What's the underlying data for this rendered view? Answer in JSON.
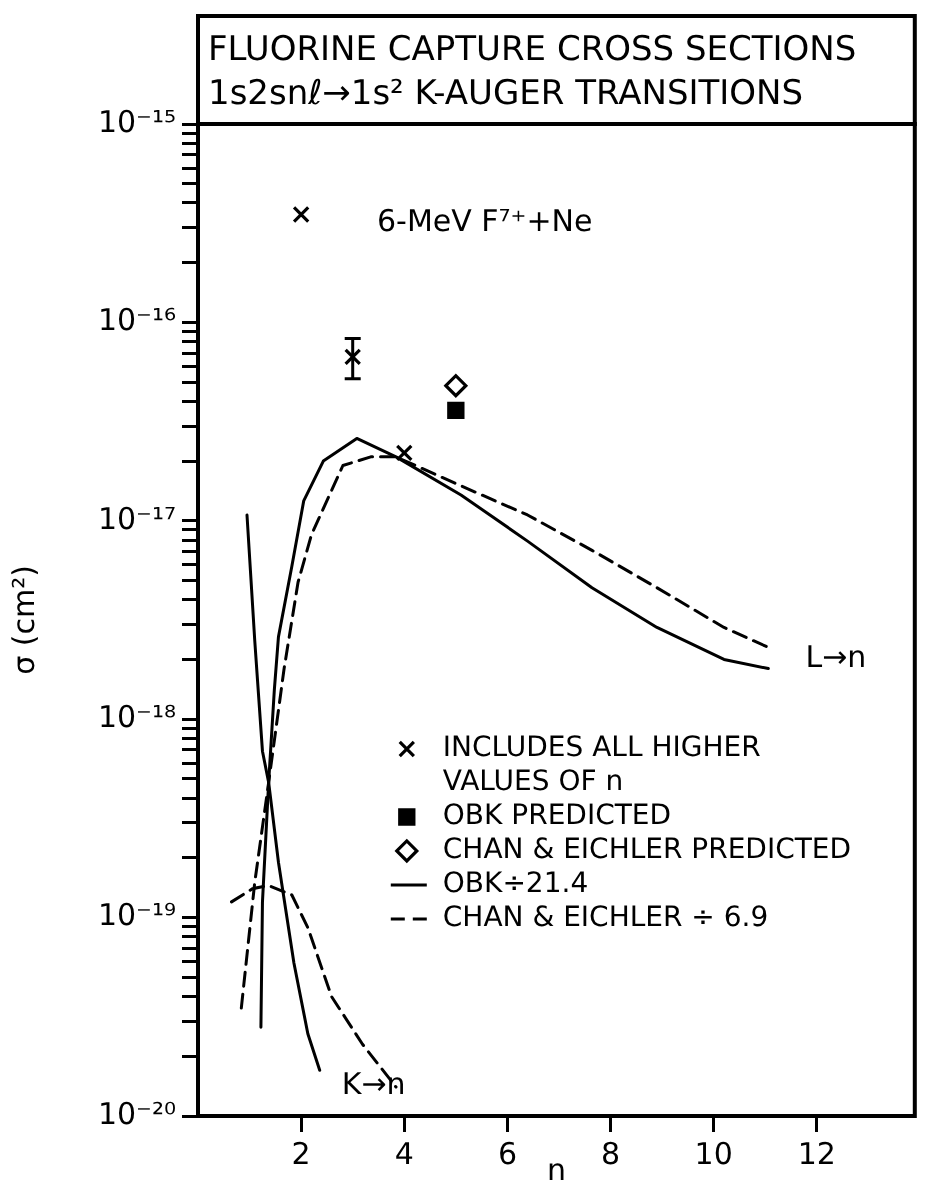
{
  "chart_data": {
    "type": "line",
    "title": "FLUORINE CAPTURE CROSS SECTIONS",
    "subtitle": "1s2snℓ→1s² K-AUGER TRANSITIONS",
    "xlabel": "n",
    "ylabel": "σ (cm²)",
    "log": "y",
    "xlim": [
      0,
      13.9
    ],
    "xticks": [
      2,
      4,
      6,
      8,
      10,
      12
    ],
    "ylim": [
      1e-20,
      1e-15
    ],
    "yticks": [
      {
        "value": 1e-20,
        "label": "10⁻²⁰"
      },
      {
        "value": 2e-20,
        "label": null
      },
      {
        "value": 3e-20,
        "label": null
      },
      {
        "value": 4e-20,
        "label": null
      },
      {
        "value": 5e-20,
        "label": null
      },
      {
        "value": 6e-20,
        "label": null
      },
      {
        "value": 7e-20,
        "label": null
      },
      {
        "value": 8e-20,
        "label": null
      },
      {
        "value": 9e-20,
        "label": null
      },
      {
        "value": 1e-19,
        "label": "10⁻¹⁹"
      },
      {
        "value": 2e-19,
        "label": null
      },
      {
        "value": 3e-19,
        "label": null
      },
      {
        "value": 4e-19,
        "label": null
      },
      {
        "value": 5e-19,
        "label": null
      },
      {
        "value": 6e-19,
        "label": null
      },
      {
        "value": 7e-19,
        "label": null
      },
      {
        "value": 8e-19,
        "label": null
      },
      {
        "value": 9e-19,
        "label": null
      },
      {
        "value": 1e-18,
        "label": "10⁻¹⁸"
      },
      {
        "value": 2e-18,
        "label": null
      },
      {
        "value": 3e-18,
        "label": null
      },
      {
        "value": 4e-18,
        "label": null
      },
      {
        "value": 5e-18,
        "label": null
      },
      {
        "value": 6e-18,
        "label": null
      },
      {
        "value": 7e-18,
        "label": null
      },
      {
        "value": 8e-18,
        "label": null
      },
      {
        "value": 9e-18,
        "label": null
      },
      {
        "value": 1e-17,
        "label": "10⁻¹⁷"
      },
      {
        "value": 2e-17,
        "label": null
      },
      {
        "value": 3e-17,
        "label": null
      },
      {
        "value": 4e-17,
        "label": null
      },
      {
        "value": 5e-17,
        "label": null
      },
      {
        "value": 6e-17,
        "label": null
      },
      {
        "value": 7e-17,
        "label": null
      },
      {
        "value": 8e-17,
        "label": null
      },
      {
        "value": 9e-17,
        "label": null
      },
      {
        "value": 1e-16,
        "label": "10⁻¹⁶"
      },
      {
        "value": 2e-16,
        "label": null
      },
      {
        "value": 3e-16,
        "label": null
      },
      {
        "value": 4e-16,
        "label": null
      },
      {
        "value": 5e-16,
        "label": null
      },
      {
        "value": 6e-16,
        "label": null
      },
      {
        "value": 7e-16,
        "label": null
      },
      {
        "value": 8e-16,
        "label": null
      },
      {
        "value": 9e-16,
        "label": null
      },
      {
        "value": 1e-15,
        "label": "10⁻¹⁵"
      }
    ],
    "legend": "right",
    "annotations": [
      "6-MeV F⁷⁺+Ne",
      "L→n",
      "K→n"
    ],
    "series": [
      {
        "type": "scatter",
        "color": "#000000",
        "marker": "cross",
        "x": [
          2,
          3
        ],
        "values": [
          3.5e-16,
          6.7e-17
        ],
        "errors": [
          null,
          [
            5.2e-17,
            8.3e-17
          ]
        ]
      },
      {
        "name": "INCLUDES ALL HIGHER VALUES OF n",
        "type": "scatter",
        "color": "#000000",
        "marker": "cross",
        "x": [
          4
        ],
        "values": [
          2.2e-17
        ]
      },
      {
        "name": "OBK PREDICTED",
        "type": "scatter",
        "color": "#000000",
        "marker": "square",
        "x": [
          5
        ],
        "values": [
          3.6e-17
        ]
      },
      {
        "name": "CHAN & EICHLER PREDICTED",
        "type": "scatter",
        "color": "#000000",
        "marker": "diamond",
        "x": [
          5
        ],
        "values": [
          4.8e-17
        ]
      },
      {
        "name": "OBK÷21.4",
        "type": "line",
        "color": "#000000",
        "line_style": "solid",
        "marker": "none",
        "x": [
          1.22,
          1.25,
          1.37,
          1.48,
          1.56,
          1.82,
          2.05,
          2.43,
          3.08,
          3.84,
          5.1,
          6.39,
          7.64,
          8.9,
          10.2,
          11.06
        ],
        "values": [
          2.8e-20,
          1.2e-19,
          4.8e-19,
          1.4e-18,
          2.6e-18,
          5.9e-18,
          1.26e-17,
          2e-17,
          2.6e-17,
          2.1e-17,
          1.35e-17,
          7.9e-18,
          4.6e-18,
          2.9e-18,
          2e-18,
          1.8e-18
        ]
      },
      {
        "name": "CHAN & EICHLER ÷ 6.9",
        "type": "line",
        "color": "#000000",
        "line_style": "dashed",
        "marker": "none",
        "x": [
          0.84,
          1.1,
          1.37,
          1.67,
          1.94,
          2.2,
          2.81,
          3.35,
          3.84,
          5.1,
          6.39,
          7.64,
          8.9,
          10.2,
          11.06
        ],
        "values": [
          3.5e-20,
          1.5e-19,
          4.8e-19,
          1.8e-18,
          4.9e-18,
          8.5e-18,
          1.9e-17,
          2.1e-17,
          2.1e-17,
          1.5e-17,
          1.07e-17,
          7.1e-18,
          4.6e-18,
          2.9e-18,
          2.3e-18
        ]
      },
      {
        "type": "line",
        "color": "#000000",
        "line_style": "solid",
        "marker": "none",
        "x": [
          0.95,
          1.1,
          1.25,
          1.37,
          1.56,
          1.86,
          2.13,
          2.36
        ],
        "values": [
          1.07e-17,
          2.5e-18,
          6.9e-19,
          4.8e-19,
          1.9e-19,
          5.9e-20,
          2.6e-20,
          1.7e-20
        ]
      },
      {
        "type": "line",
        "color": "#000000",
        "line_style": "dashed",
        "marker": "none",
        "x": [
          0.65,
          1.06,
          1.37,
          1.82,
          2.13,
          2.59,
          3.19,
          3.84
        ],
        "values": [
          1.2e-19,
          1.4e-19,
          1.45e-19,
          1.3e-19,
          8.9e-20,
          4e-20,
          2.3e-20,
          1.4e-20
        ]
      }
    ]
  }
}
